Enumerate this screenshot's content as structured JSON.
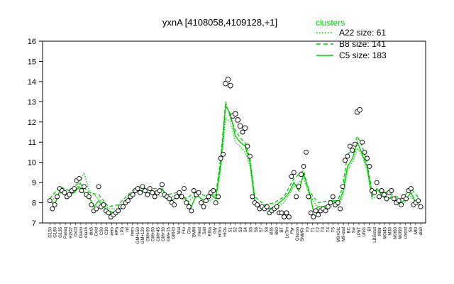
{
  "chart_data": {
    "type": "line",
    "title": "yxnA [4108058,4109128,+1]",
    "ylim": [
      7,
      16
    ],
    "yticks": [
      7,
      8,
      9,
      10,
      11,
      12,
      13,
      14,
      15,
      16
    ],
    "legend": {
      "title": "clusters",
      "position": "top-right",
      "entries": [
        {
          "label": "A22 size: 61",
          "style": "dotted"
        },
        {
          "label": "B8 size: 141",
          "style": "dashed"
        },
        {
          "label": "C5 size: 183",
          "style": "solid"
        }
      ]
    },
    "line_color": "#00cc00",
    "xtick_labels": [
      "G150",
      "G180",
      "G135",
      "Paraq",
      "H2O2",
      "Oxctl",
      "Diami",
      "dia15",
      "dia5",
      "Cold",
      "C90",
      "C30",
      "aero",
      "HPh",
      "LPh",
      "nit",
      "ferm",
      "GM+150",
      "GM+120",
      "GM+90",
      "GM+60",
      "GM+45",
      "GM+30",
      "GM+15",
      "GM-t0",
      "Mal",
      "Fru",
      "Glu",
      "BMM",
      "Heat",
      "Salt",
      "Etha",
      "Gly",
      "HiTm",
      "HiOs",
      "S1",
      "S2",
      "S3",
      "S4",
      "S5",
      "S6",
      "S7",
      "S8",
      "B36",
      "B60",
      "BT",
      "LoTm",
      "Pyr",
      "Glucon",
      "SMMPr",
      "T0",
      "T1",
      "T2",
      "T3",
      "T4",
      "T5",
      "M9+Glc",
      "M9-stat",
      "BC",
      "Sw",
      "LPhT",
      "UNG",
      "BI",
      "LBGstat",
      "M0tr",
      "M0t45",
      "M30",
      "M0t60",
      "M0t90",
      "Lbstat",
      "Sb",
      "Mt0",
      "dia0"
    ],
    "points": [
      [
        0,
        8.1
      ],
      [
        1,
        7.7
      ],
      [
        2,
        7.9
      ],
      [
        3,
        8.3
      ],
      [
        4,
        8.7
      ],
      [
        5,
        8.6
      ],
      [
        6,
        8.5
      ],
      [
        7,
        8.3
      ],
      [
        8,
        8.4
      ],
      [
        9,
        8.6
      ],
      [
        10,
        8.7
      ],
      [
        11,
        9.1
      ],
      [
        12,
        9.2
      ],
      [
        13,
        8.6
      ],
      [
        14,
        8.8
      ],
      [
        15,
        8.4
      ],
      [
        16,
        8.3
      ],
      [
        17,
        7.9
      ],
      [
        18,
        7.6
      ],
      [
        19,
        7.7
      ],
      [
        20,
        8.8
      ],
      [
        21,
        7.8
      ],
      [
        22,
        7.9
      ],
      [
        23,
        7.6
      ],
      [
        24,
        7.5
      ],
      [
        25,
        7.3
      ],
      [
        26,
        7.4
      ],
      [
        27,
        7.5
      ],
      [
        28,
        7.6
      ],
      [
        29,
        7.8
      ],
      [
        30,
        7.8
      ],
      [
        31,
        8.0
      ],
      [
        32,
        8.1
      ],
      [
        33,
        8.3
      ],
      [
        34,
        8.4
      ],
      [
        35,
        8.6
      ],
      [
        36,
        8.7
      ],
      [
        37,
        8.5
      ],
      [
        38,
        8.8
      ],
      [
        39,
        8.6
      ],
      [
        40,
        8.4
      ],
      [
        41,
        8.7
      ],
      [
        42,
        8.5
      ],
      [
        43,
        8.3
      ],
      [
        44,
        8.5
      ],
      [
        45,
        8.6
      ],
      [
        46,
        8.9
      ],
      [
        47,
        8.4
      ],
      [
        48,
        8.3
      ],
      [
        49,
        8.2
      ],
      [
        50,
        8.0
      ],
      [
        51,
        7.9
      ],
      [
        52,
        8.3
      ],
      [
        53,
        8.5
      ],
      [
        54,
        8.3
      ],
      [
        55,
        8.7
      ],
      [
        56,
        8.0
      ],
      [
        57,
        7.8
      ],
      [
        58,
        7.6
      ],
      [
        59,
        8.6
      ],
      [
        60,
        8.4
      ],
      [
        61,
        8.5
      ],
      [
        62,
        8.0
      ],
      [
        63,
        7.8
      ],
      [
        64,
        8.1
      ],
      [
        65,
        8.3
      ],
      [
        66,
        8.5
      ],
      [
        67,
        8.6
      ],
      [
        68,
        8.0
      ],
      [
        69,
        8.3
      ],
      [
        70,
        10.2
      ],
      [
        71,
        10.4
      ],
      [
        72,
        13.9
      ],
      [
        73,
        14.1
      ],
      [
        74,
        13.8
      ],
      [
        75,
        12.3
      ],
      [
        76,
        12.4
      ],
      [
        77,
        12.1
      ],
      [
        78,
        11.8
      ],
      [
        79,
        11.5
      ],
      [
        80,
        11.7
      ],
      [
        81,
        10.8
      ],
      [
        82,
        10.3
      ],
      [
        83,
        8.3
      ],
      [
        84,
        8.0
      ],
      [
        85,
        7.9
      ],
      [
        86,
        7.7
      ],
      [
        87,
        7.8
      ],
      [
        88,
        7.7
      ],
      [
        89,
        7.8
      ],
      [
        90,
        7.5
      ],
      [
        91,
        7.6
      ],
      [
        92,
        7.7
      ],
      [
        93,
        7.8
      ],
      [
        94,
        7.5
      ],
      [
        95,
        7.5
      ],
      [
        96,
        7.3
      ],
      [
        97,
        7.5
      ],
      [
        98,
        7.3
      ],
      [
        99,
        9.3
      ],
      [
        100,
        9.5
      ],
      [
        101,
        8.3
      ],
      [
        102,
        8.8
      ],
      [
        103,
        9.4
      ],
      [
        104,
        9.8
      ],
      [
        105,
        10.5
      ],
      [
        106,
        8.3
      ],
      [
        107,
        7.5
      ],
      [
        108,
        7.3
      ],
      [
        109,
        7.6
      ],
      [
        110,
        7.4
      ],
      [
        111,
        7.6
      ],
      [
        112,
        7.7
      ],
      [
        113,
        7.6
      ],
      [
        114,
        7.8
      ],
      [
        115,
        8.0
      ],
      [
        116,
        8.3
      ],
      [
        117,
        7.9
      ],
      [
        118,
        8.0
      ],
      [
        119,
        7.7
      ],
      [
        120,
        8.8
      ],
      [
        121,
        10.1
      ],
      [
        122,
        10.3
      ],
      [
        123,
        10.8
      ],
      [
        124,
        10.6
      ],
      [
        125,
        10.9
      ],
      [
        126,
        12.5
      ],
      [
        127,
        12.6
      ],
      [
        128,
        11.0
      ],
      [
        129,
        10.5
      ],
      [
        130,
        10.2
      ],
      [
        131,
        9.8
      ],
      [
        132,
        8.6
      ],
      [
        133,
        8.5
      ],
      [
        134,
        9.0
      ],
      [
        135,
        8.3
      ],
      [
        136,
        8.6
      ],
      [
        137,
        8.4
      ],
      [
        138,
        8.2
      ],
      [
        139,
        8.5
      ],
      [
        140,
        8.6
      ],
      [
        141,
        8.2
      ],
      [
        142,
        8.0
      ],
      [
        143,
        8.1
      ],
      [
        144,
        7.9
      ],
      [
        145,
        8.3
      ],
      [
        146,
        8.2
      ],
      [
        147,
        8.6
      ],
      [
        148,
        8.7
      ],
      [
        149,
        7.9
      ],
      [
        150,
        8.0
      ],
      [
        151,
        8.1
      ],
      [
        152,
        7.8
      ]
    ],
    "c5_line": [
      [
        0,
        8.1
      ],
      [
        2,
        7.9
      ],
      [
        4,
        8.6
      ],
      [
        6,
        8.4
      ],
      [
        8,
        8.4
      ],
      [
        10,
        8.5
      ],
      [
        12,
        8.8
      ],
      [
        14,
        8.5
      ],
      [
        16,
        8.3
      ],
      [
        18,
        7.8
      ],
      [
        20,
        8.1
      ],
      [
        22,
        7.8
      ],
      [
        24,
        7.6
      ],
      [
        26,
        7.5
      ],
      [
        28,
        7.6
      ],
      [
        30,
        7.9
      ],
      [
        32,
        8.2
      ],
      [
        34,
        8.4
      ],
      [
        36,
        8.6
      ],
      [
        38,
        8.6
      ],
      [
        40,
        8.5
      ],
      [
        42,
        8.5
      ],
      [
        44,
        8.5
      ],
      [
        46,
        8.7
      ],
      [
        48,
        8.3
      ],
      [
        50,
        8.1
      ],
      [
        52,
        8.3
      ],
      [
        54,
        8.4
      ],
      [
        56,
        8.1
      ],
      [
        58,
        7.8
      ],
      [
        60,
        8.4
      ],
      [
        62,
        8.2
      ],
      [
        64,
        8.1
      ],
      [
        66,
        8.4
      ],
      [
        68,
        8.2
      ],
      [
        70,
        9.9
      ],
      [
        72,
        12.8
      ],
      [
        74,
        12.4
      ],
      [
        76,
        11.3
      ],
      [
        78,
        11.0
      ],
      [
        80,
        10.8
      ],
      [
        82,
        10.0
      ],
      [
        84,
        8.1
      ],
      [
        86,
        7.8
      ],
      [
        88,
        7.8
      ],
      [
        90,
        7.7
      ],
      [
        92,
        7.8
      ],
      [
        94,
        8.0
      ],
      [
        96,
        8.2
      ],
      [
        98,
        8.5
      ],
      [
        100,
        9.0
      ],
      [
        102,
        8.6
      ],
      [
        104,
        9.4
      ],
      [
        106,
        8.7
      ],
      [
        108,
        7.6
      ],
      [
        110,
        7.8
      ],
      [
        112,
        7.8
      ],
      [
        114,
        7.9
      ],
      [
        116,
        8.1
      ],
      [
        118,
        7.9
      ],
      [
        120,
        8.5
      ],
      [
        122,
        9.8
      ],
      [
        124,
        10.2
      ],
      [
        126,
        11.0
      ],
      [
        128,
        10.4
      ],
      [
        130,
        9.8
      ],
      [
        132,
        8.3
      ],
      [
        134,
        8.7
      ],
      [
        136,
        8.4
      ],
      [
        138,
        8.1
      ],
      [
        140,
        8.3
      ],
      [
        142,
        8.0
      ],
      [
        144,
        8.0
      ],
      [
        146,
        8.2
      ],
      [
        148,
        8.5
      ],
      [
        150,
        8.0
      ],
      [
        152,
        7.9
      ]
    ],
    "b8_line": [
      [
        0,
        8.2
      ],
      [
        4,
        8.8
      ],
      [
        8,
        8.6
      ],
      [
        12,
        9.0
      ],
      [
        16,
        8.5
      ],
      [
        20,
        8.4
      ],
      [
        24,
        7.8
      ],
      [
        28,
        7.9
      ],
      [
        32,
        8.4
      ],
      [
        36,
        8.8
      ],
      [
        40,
        8.7
      ],
      [
        44,
        8.7
      ],
      [
        48,
        8.4
      ],
      [
        52,
        8.5
      ],
      [
        56,
        8.2
      ],
      [
        60,
        8.6
      ],
      [
        64,
        8.3
      ],
      [
        68,
        8.4
      ],
      [
        70,
        10.2
      ],
      [
        72,
        13.0
      ],
      [
        74,
        12.2
      ],
      [
        76,
        11.6
      ],
      [
        78,
        11.2
      ],
      [
        80,
        11.0
      ],
      [
        82,
        10.2
      ],
      [
        84,
        8.3
      ],
      [
        88,
        7.9
      ],
      [
        92,
        8.0
      ],
      [
        96,
        8.3
      ],
      [
        100,
        9.2
      ],
      [
        104,
        9.6
      ],
      [
        106,
        8.6
      ],
      [
        110,
        8.0
      ],
      [
        114,
        8.1
      ],
      [
        118,
        8.1
      ],
      [
        120,
        8.8
      ],
      [
        122,
        10.4
      ],
      [
        124,
        10.6
      ],
      [
        126,
        11.3
      ],
      [
        128,
        10.8
      ],
      [
        130,
        10.0
      ],
      [
        132,
        8.6
      ],
      [
        136,
        8.6
      ],
      [
        140,
        8.4
      ],
      [
        144,
        8.2
      ],
      [
        148,
        8.7
      ],
      [
        152,
        8.1
      ]
    ],
    "a22_line": [
      [
        0,
        8.0
      ],
      [
        4,
        8.5
      ],
      [
        8,
        8.3
      ],
      [
        12,
        8.9
      ],
      [
        14,
        9.5
      ],
      [
        16,
        8.6
      ],
      [
        20,
        8.2
      ],
      [
        24,
        7.7
      ],
      [
        28,
        7.7
      ],
      [
        32,
        8.2
      ],
      [
        36,
        8.6
      ],
      [
        40,
        8.5
      ],
      [
        44,
        8.4
      ],
      [
        48,
        8.2
      ],
      [
        52,
        8.4
      ],
      [
        56,
        8.0
      ],
      [
        60,
        8.4
      ],
      [
        64,
        8.0
      ],
      [
        68,
        8.3
      ],
      [
        70,
        9.6
      ],
      [
        72,
        12.2
      ],
      [
        74,
        12.0
      ],
      [
        76,
        11.0
      ],
      [
        78,
        10.8
      ],
      [
        80,
        10.5
      ],
      [
        82,
        9.8
      ],
      [
        84,
        8.0
      ],
      [
        88,
        7.7
      ],
      [
        92,
        7.7
      ],
      [
        96,
        8.0
      ],
      [
        100,
        8.8
      ],
      [
        104,
        9.2
      ],
      [
        106,
        8.5
      ],
      [
        110,
        7.7
      ],
      [
        114,
        7.8
      ],
      [
        118,
        7.8
      ],
      [
        120,
        8.3
      ],
      [
        122,
        9.6
      ],
      [
        124,
        10.0
      ],
      [
        126,
        10.7
      ],
      [
        128,
        10.3
      ],
      [
        130,
        9.6
      ],
      [
        132,
        8.2
      ],
      [
        136,
        8.4
      ],
      [
        140,
        8.2
      ],
      [
        144,
        7.9
      ],
      [
        148,
        8.3
      ],
      [
        152,
        7.7
      ]
    ]
  }
}
